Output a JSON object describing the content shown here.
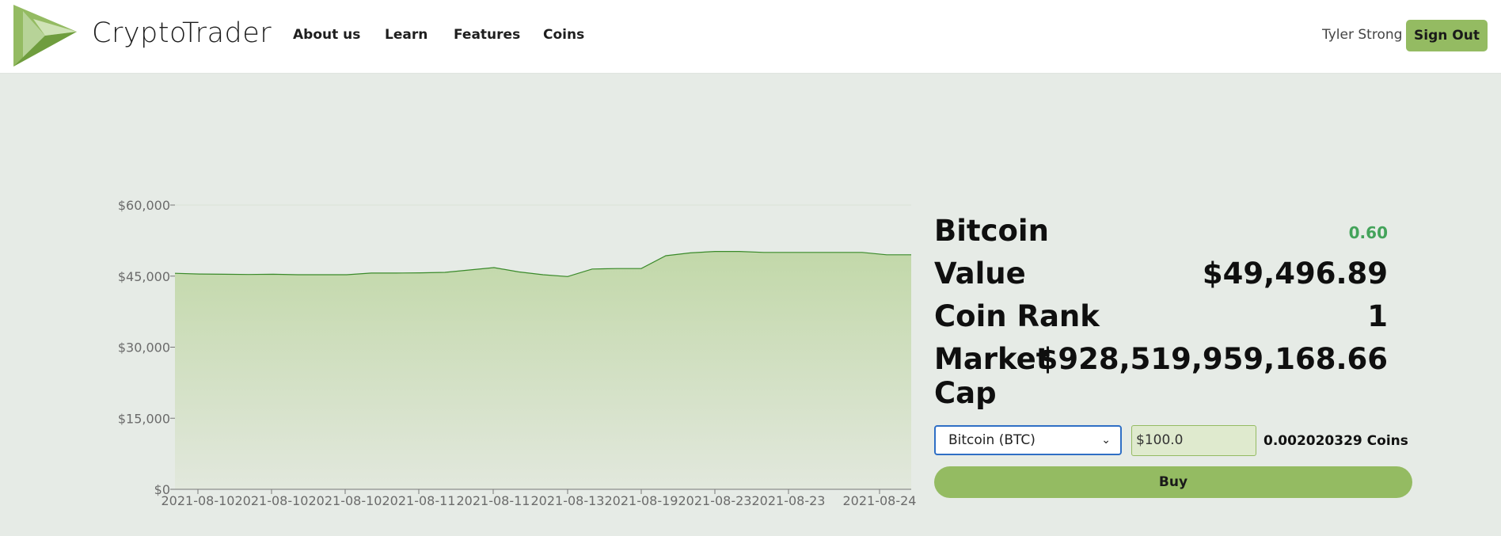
{
  "brand": {
    "name": "CryptoTrader"
  },
  "nav": {
    "items": [
      {
        "label": "About us"
      },
      {
        "label": "Learn"
      },
      {
        "label": "Features"
      },
      {
        "label": "Coins"
      }
    ]
  },
  "user": {
    "name": "Tyler Strong",
    "signout_label": "Sign Out"
  },
  "colors": {
    "accent": "#94bb62",
    "area_line": "#3a8a2a",
    "positive": "#43a35a",
    "select_border": "#2f6fc5"
  },
  "coin": {
    "name": "Bitcoin",
    "change": "0.60",
    "value_label": "Value",
    "value": "$49,496.89",
    "rank_label": "Coin Rank",
    "rank": "1",
    "marketcap_label_1": "Market",
    "marketcap_label_2": "Cap",
    "marketcap": "$928,519,959,168.66"
  },
  "trade": {
    "selected_coin": "Bitcoin (BTC)",
    "amount": "$100.0",
    "coins_result": "0.002020329 Coins",
    "buy_label": "Buy"
  },
  "chart_data": {
    "type": "area",
    "x_ticks": [
      "2021-08-10",
      "2021-08-10",
      "2021-08-10",
      "2021-08-11",
      "2021-08-11",
      "2021-08-13",
      "2021-08-19",
      "2021-08-23",
      "2021-08-23",
      "2021-08-24"
    ],
    "y_ticks": [
      "$0",
      "$15,000",
      "$30,000",
      "$45,000",
      "$60,000"
    ],
    "ylim": [
      0,
      60000
    ],
    "values": [
      45600,
      45450,
      45400,
      45350,
      45400,
      45300,
      45300,
      45300,
      45650,
      45650,
      45700,
      45800,
      46300,
      46800,
      45900,
      45300,
      44900,
      46500,
      46600,
      46600,
      49300,
      49900,
      50200,
      50200,
      50000,
      50000,
      50000,
      50000,
      50000,
      49500,
      49497
    ]
  }
}
